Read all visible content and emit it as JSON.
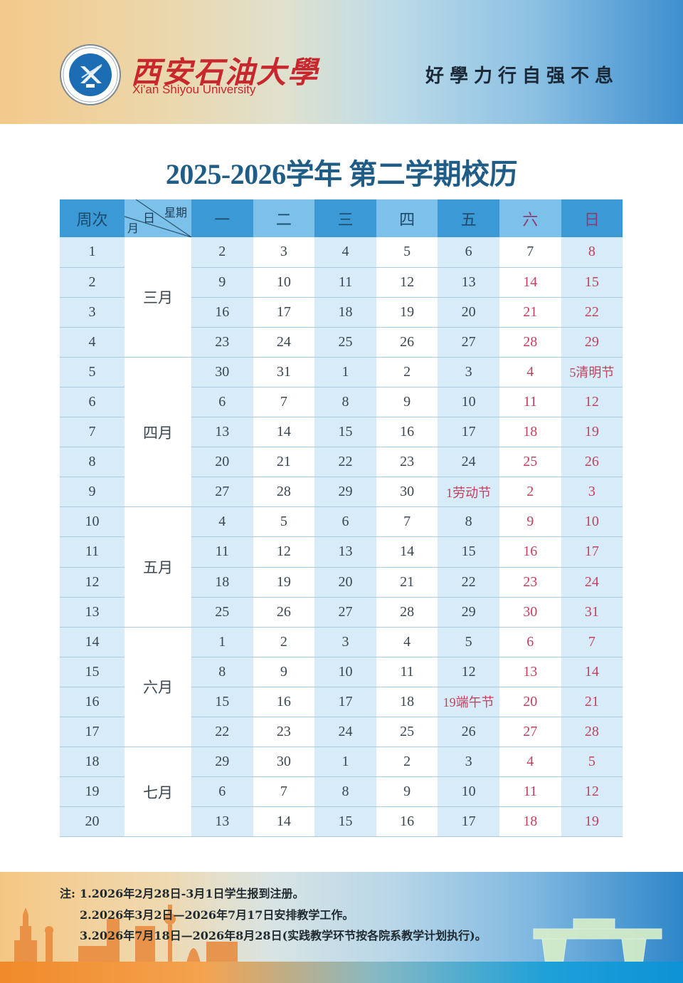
{
  "header": {
    "university_cn": "西安石油大學",
    "university_en": "Xi'an Shiyou University",
    "emblem_year": "1951",
    "motto": "好學力行自强不息"
  },
  "title": "2025-2026学年  第二学期校历",
  "table": {
    "header": {
      "week_no": "周次",
      "diag_weekday": "星期",
      "diag_day": "日",
      "diag_month": "月",
      "weekdays": [
        "一",
        "二",
        "三",
        "四",
        "五",
        "六",
        "日"
      ]
    },
    "months": [
      {
        "label": "三月",
        "rows": 4
      },
      {
        "label": "四月",
        "rows": 5
      },
      {
        "label": "五月",
        "rows": 4
      },
      {
        "label": "六月",
        "rows": 4
      },
      {
        "label": "七月",
        "rows": 3
      }
    ],
    "weeks": [
      {
        "week": "1",
        "days": [
          "2",
          "3",
          "4",
          "5",
          "6",
          "7",
          "8"
        ]
      },
      {
        "week": "2",
        "days": [
          "9",
          "10",
          "11",
          "12",
          "13",
          "14",
          "15"
        ]
      },
      {
        "week": "3",
        "days": [
          "16",
          "17",
          "18",
          "19",
          "20",
          "21",
          "22"
        ]
      },
      {
        "week": "4",
        "days": [
          "23",
          "24",
          "25",
          "26",
          "27",
          "28",
          "29"
        ]
      },
      {
        "week": "5",
        "days": [
          "30",
          "31",
          "1",
          "2",
          "3",
          "4",
          "5清明节"
        ]
      },
      {
        "week": "6",
        "days": [
          "6",
          "7",
          "8",
          "9",
          "10",
          "11",
          "12"
        ]
      },
      {
        "week": "7",
        "days": [
          "13",
          "14",
          "15",
          "16",
          "17",
          "18",
          "19"
        ]
      },
      {
        "week": "8",
        "days": [
          "20",
          "21",
          "22",
          "23",
          "24",
          "25",
          "26"
        ]
      },
      {
        "week": "9",
        "days": [
          "27",
          "28",
          "29",
          "30",
          "1劳动节",
          "2",
          "3"
        ]
      },
      {
        "week": "10",
        "days": [
          "4",
          "5",
          "6",
          "7",
          "8",
          "9",
          "10"
        ]
      },
      {
        "week": "11",
        "days": [
          "11",
          "12",
          "13",
          "14",
          "15",
          "16",
          "17"
        ]
      },
      {
        "week": "12",
        "days": [
          "18",
          "19",
          "20",
          "21",
          "22",
          "23",
          "24"
        ]
      },
      {
        "week": "13",
        "days": [
          "25",
          "26",
          "27",
          "28",
          "29",
          "30",
          "31"
        ]
      },
      {
        "week": "14",
        "days": [
          "1",
          "2",
          "3",
          "4",
          "5",
          "6",
          "7"
        ]
      },
      {
        "week": "15",
        "days": [
          "8",
          "9",
          "10",
          "11",
          "12",
          "13",
          "14"
        ]
      },
      {
        "week": "16",
        "days": [
          "15",
          "16",
          "17",
          "18",
          "19端午节",
          "20",
          "21"
        ]
      },
      {
        "week": "17",
        "days": [
          "22",
          "23",
          "24",
          "25",
          "26",
          "27",
          "28"
        ]
      },
      {
        "week": "18",
        "days": [
          "29",
          "30",
          "1",
          "2",
          "3",
          "4",
          "5"
        ]
      },
      {
        "week": "19",
        "days": [
          "6",
          "7",
          "8",
          "9",
          "10",
          "11",
          "12"
        ]
      },
      {
        "week": "20",
        "days": [
          "13",
          "14",
          "15",
          "16",
          "17",
          "18",
          "19"
        ]
      }
    ],
    "holiday_cells": [
      {
        "week": 5,
        "col": 6,
        "name": "清明节"
      },
      {
        "week": 9,
        "col": 4,
        "name": "劳动节"
      },
      {
        "week": 16,
        "col": 4,
        "name": "端午节"
      }
    ],
    "non_red_weekend_cells": [
      {
        "week": 1,
        "col": 5
      }
    ]
  },
  "notes": {
    "prefix": "注:",
    "items": [
      "1.2026年2月28日-3月1日学生报到注册。",
      "2.2026年3月2日—2026年7月17日安排教学工作。",
      "3.2026年7月18日—2026年8月28日(实践教学环节按各院系教学计划执行)。"
    ]
  },
  "colors": {
    "title": "#1f5c86",
    "header_dark": "#3b9ad6",
    "header_light": "#7cc1ea",
    "body_light": "#d7ecf8",
    "weekend_red": "#c2415e",
    "brand_red": "#c8282d"
  }
}
